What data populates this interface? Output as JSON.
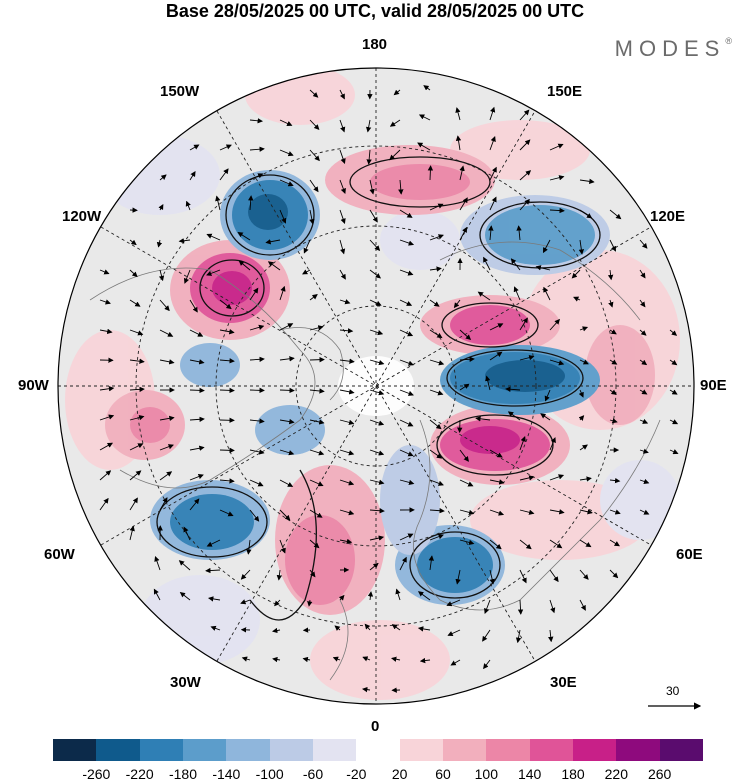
{
  "title": "Base 28/05/2025 00 UTC, valid 28/05/2025 00 UTC",
  "brand": "MODES",
  "brand_mark": "®",
  "longitude_labels": {
    "top": "180",
    "bottom": "0",
    "left": "90W",
    "right": "90E",
    "upper_left_1": "150W",
    "upper_left_2": "120W",
    "upper_right_1": "150E",
    "upper_right_2": "120E",
    "lower_left_1": "60W",
    "lower_left_2": "30W",
    "lower_right_1": "60E",
    "lower_right_2": "30E"
  },
  "wind_reference": "30",
  "colorbar": {
    "colors": [
      "#0c2a4a",
      "#0f5a8c",
      "#2f7fb5",
      "#5c9dcb",
      "#8fb6dc",
      "#bccbe6",
      "#e3e3f1",
      "#ffffff",
      "#f8d4d9",
      "#f2afbd",
      "#ec86a7",
      "#e05498",
      "#c82088",
      "#8e0a7d",
      "#5a0c6e"
    ],
    "tick_labels": [
      "-260",
      "-220",
      "-180",
      "-140",
      "-100",
      "-60",
      "-20",
      "20",
      "60",
      "100",
      "140",
      "180",
      "220",
      "260"
    ]
  },
  "colors": {
    "background": "#e9e9e9",
    "land": "#cfcfcf",
    "negative": "#2f7fb5",
    "positive": "#e05498"
  }
}
